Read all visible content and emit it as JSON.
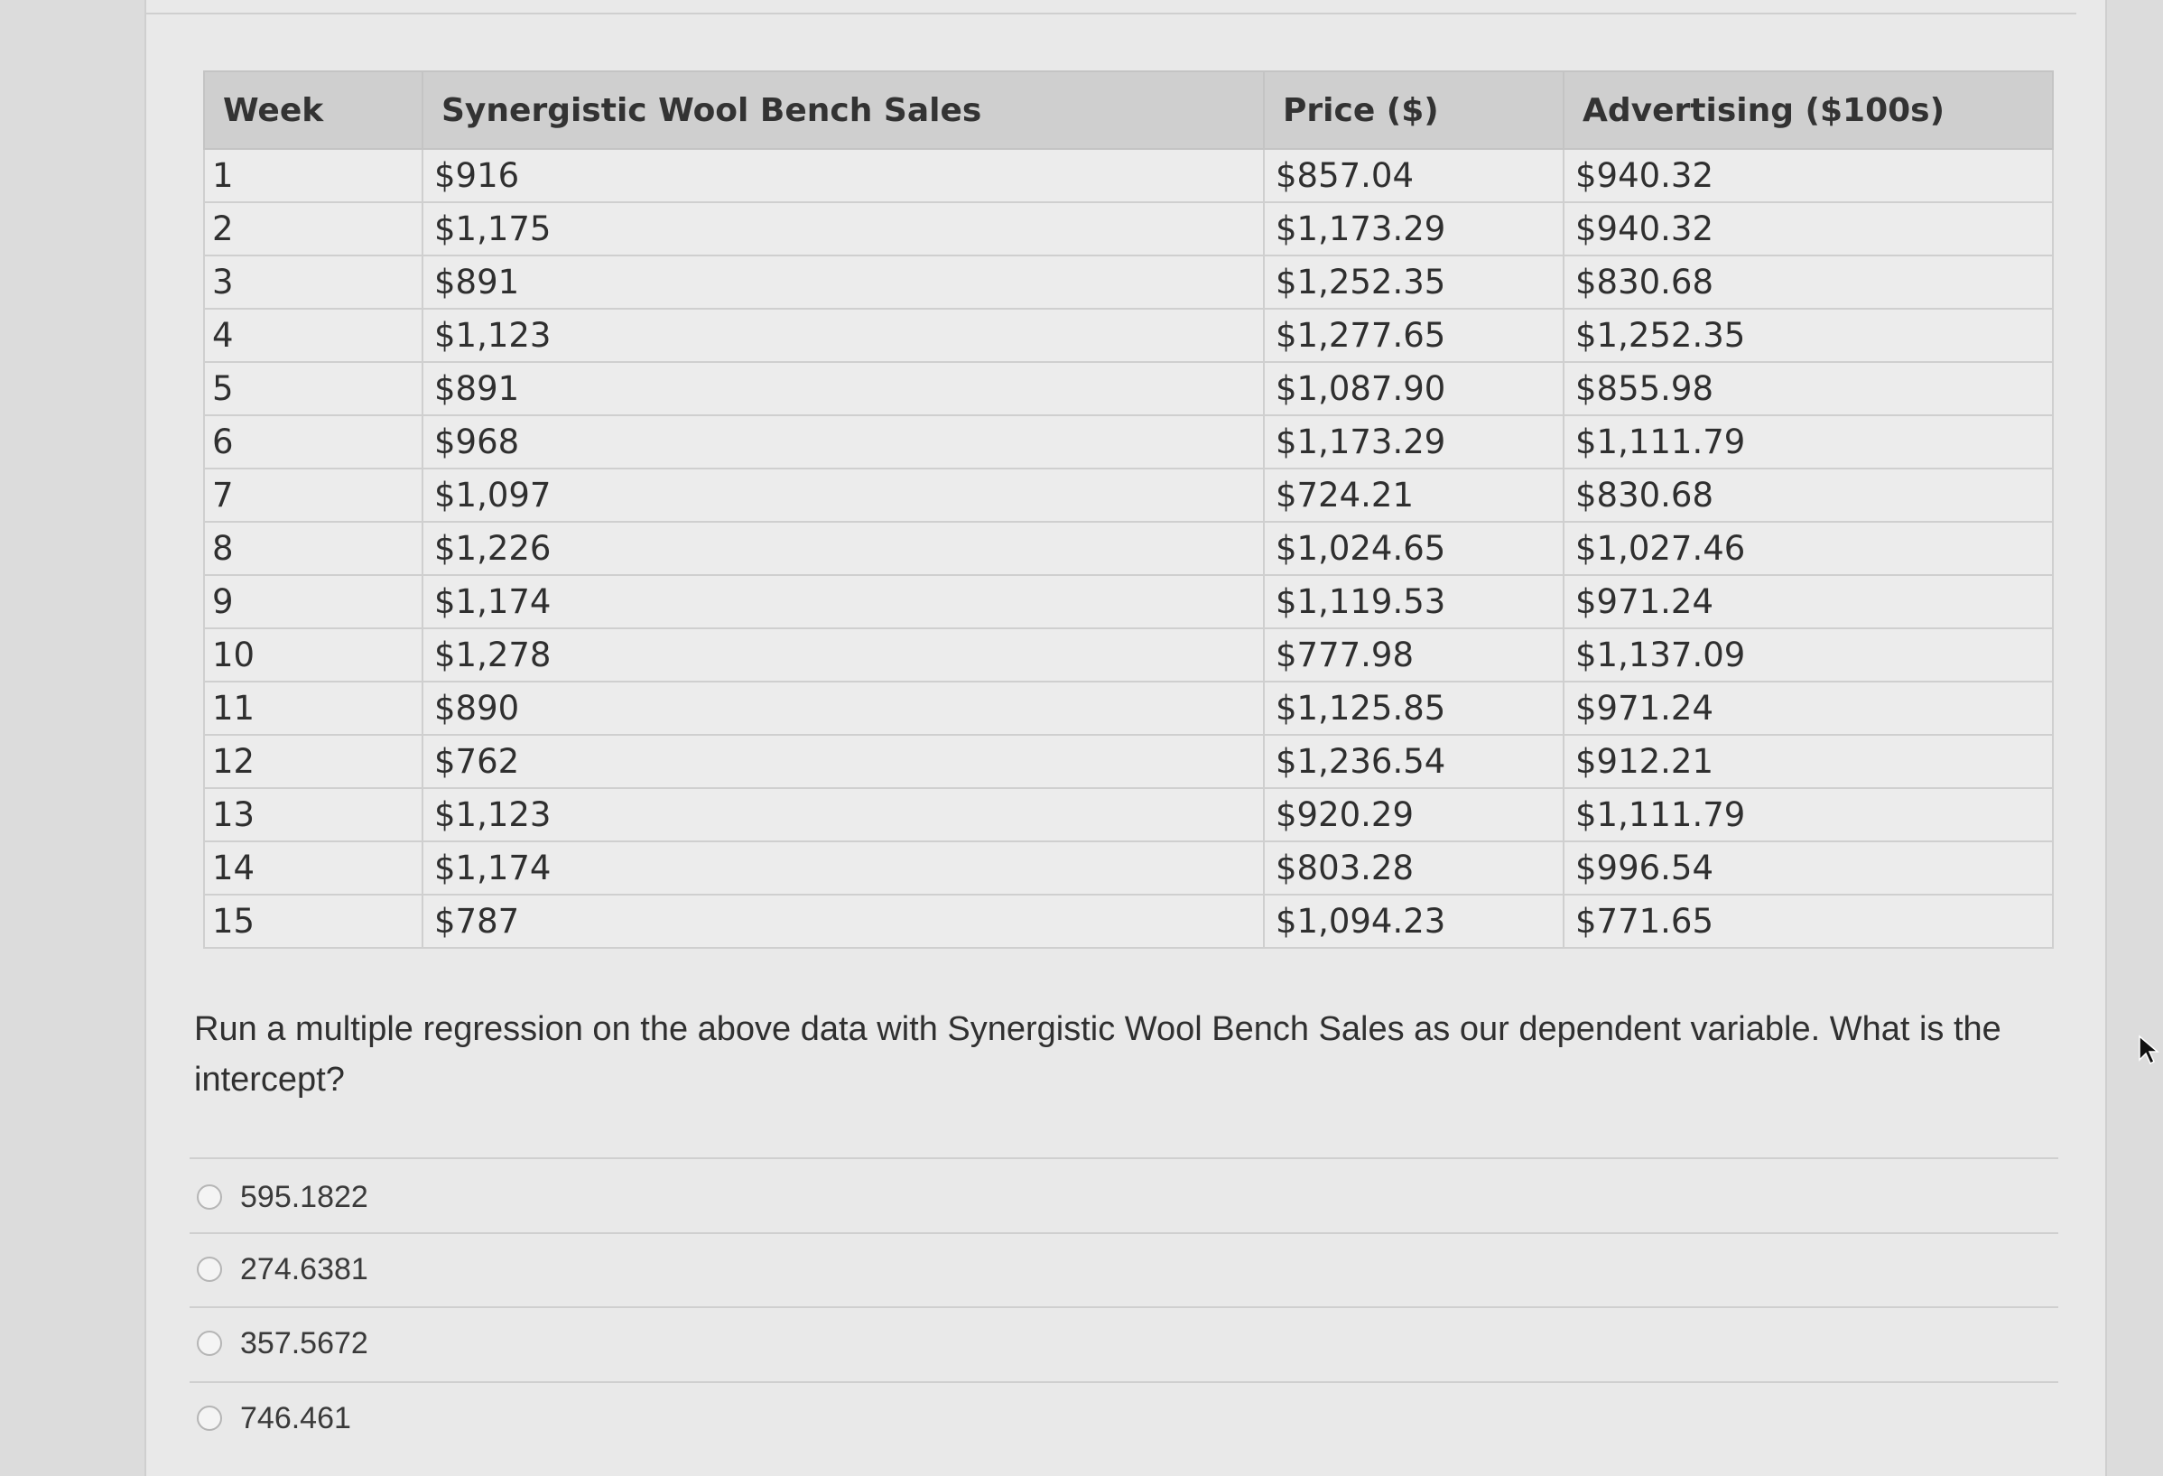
{
  "table": {
    "headers": [
      "Week",
      "Synergistic Wool Bench Sales",
      "Price ($)",
      "Advertising ($100s)"
    ],
    "rows": [
      {
        "week": "1",
        "sales": "$916",
        "price": "$857.04",
        "advertising": "$940.32"
      },
      {
        "week": "2",
        "sales": "$1,175",
        "price": "$1,173.29",
        "advertising": "$940.32"
      },
      {
        "week": "3",
        "sales": "$891",
        "price": "$1,252.35",
        "advertising": "$830.68"
      },
      {
        "week": "4",
        "sales": "$1,123",
        "price": "$1,277.65",
        "advertising": "$1,252.35"
      },
      {
        "week": "5",
        "sales": "$891",
        "price": "$1,087.90",
        "advertising": "$855.98"
      },
      {
        "week": "6",
        "sales": "$968",
        "price": "$1,173.29",
        "advertising": "$1,111.79"
      },
      {
        "week": "7",
        "sales": "$1,097",
        "price": "$724.21",
        "advertising": "$830.68"
      },
      {
        "week": "8",
        "sales": "$1,226",
        "price": "$1,024.65",
        "advertising": "$1,027.46"
      },
      {
        "week": "9",
        "sales": "$1,174",
        "price": "$1,119.53",
        "advertising": "$971.24"
      },
      {
        "week": "10",
        "sales": "$1,278",
        "price": "$777.98",
        "advertising": "$1,137.09"
      },
      {
        "week": "11",
        "sales": "$890",
        "price": "$1,125.85",
        "advertising": "$971.24"
      },
      {
        "week": "12",
        "sales": "$762",
        "price": "$1,236.54",
        "advertising": "$912.21"
      },
      {
        "week": "13",
        "sales": "$1,123",
        "price": "$920.29",
        "advertising": "$1,111.79"
      },
      {
        "week": "14",
        "sales": "$1,174",
        "price": "$803.28",
        "advertising": "$996.54"
      },
      {
        "week": "15",
        "sales": "$787",
        "price": "$1,094.23",
        "advertising": "$771.65"
      }
    ]
  },
  "question": {
    "text": "Run a multiple regression on the above data with Synergistic Wool Bench Sales as our dependent variable. What is the intercept?"
  },
  "options": [
    {
      "label": "595.1822",
      "selected": false
    },
    {
      "label": "274.6381",
      "selected": false
    },
    {
      "label": "357.5672",
      "selected": false
    },
    {
      "label": "746.461",
      "selected": false
    }
  ],
  "icons": {
    "cursor": "mouse-pointer-icon",
    "radio": "radio-button-icon"
  }
}
